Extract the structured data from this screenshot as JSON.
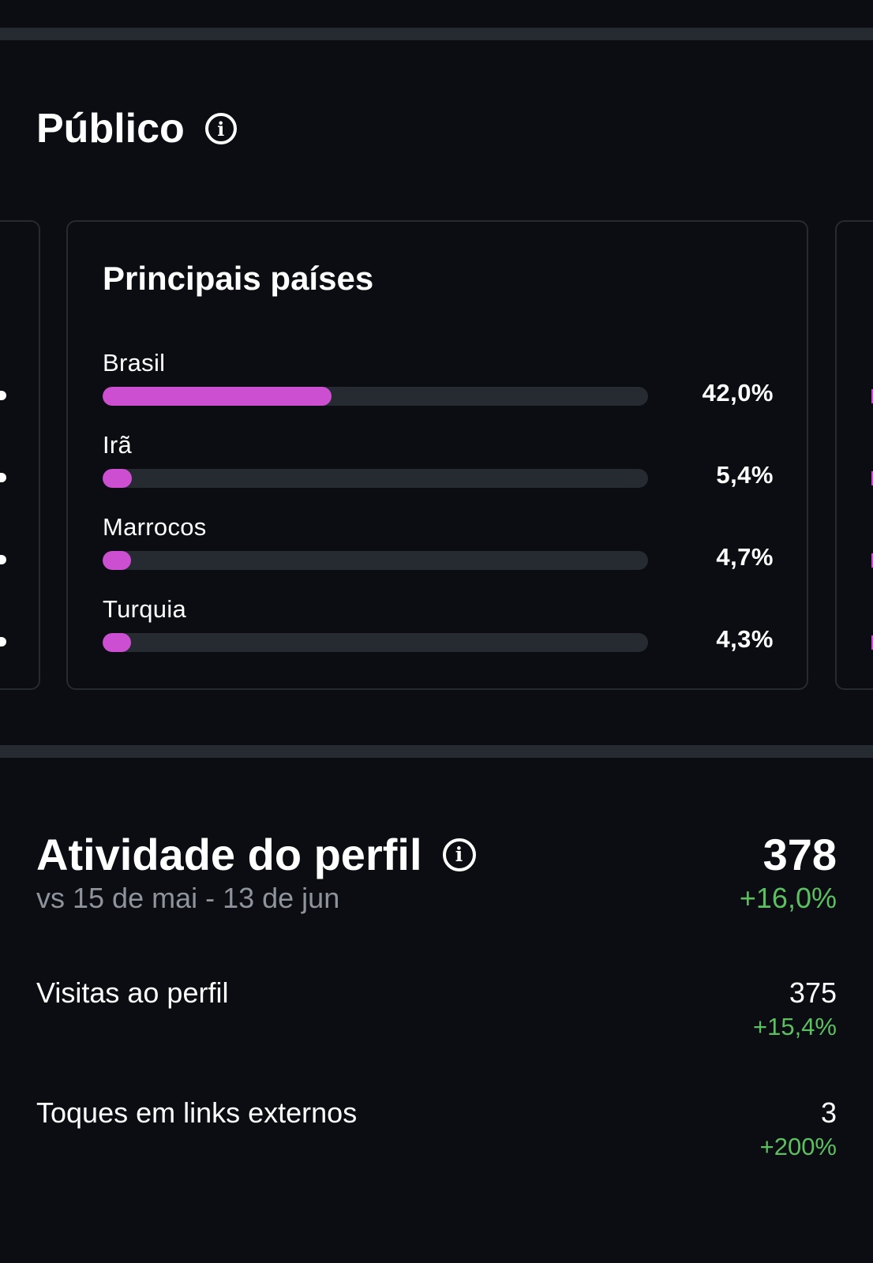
{
  "publico": {
    "title": "Público",
    "info_icon": "info-icon"
  },
  "top_countries": {
    "title": "Principais países",
    "items": [
      {
        "name": "Brasil",
        "percent_label": "42,0%",
        "value": 42.0
      },
      {
        "name": "Irã",
        "percent_label": "5,4%",
        "value": 5.4
      },
      {
        "name": "Marrocos",
        "percent_label": "4,7%",
        "value": 4.7
      },
      {
        "name": "Turquia",
        "percent_label": "4,3%",
        "value": 4.3
      }
    ],
    "bar_color": "#cc4fd1",
    "track_color": "#262a31"
  },
  "activity": {
    "title": "Atividade do perfil",
    "info_icon": "info-icon",
    "compare_label": "vs 15 de mai - 13 de jun",
    "total": "378",
    "total_change": "+16,0%",
    "metrics": [
      {
        "label": "Visitas ao perfil",
        "value": "375",
        "change": "+15,4%"
      },
      {
        "label": "Toques em links externos",
        "value": "3",
        "change": "+200%"
      }
    ]
  },
  "colors": {
    "background": "#0b0d12",
    "positive": "#5cbf60",
    "muted_text": "#8e939c",
    "divider": "#262a31"
  }
}
